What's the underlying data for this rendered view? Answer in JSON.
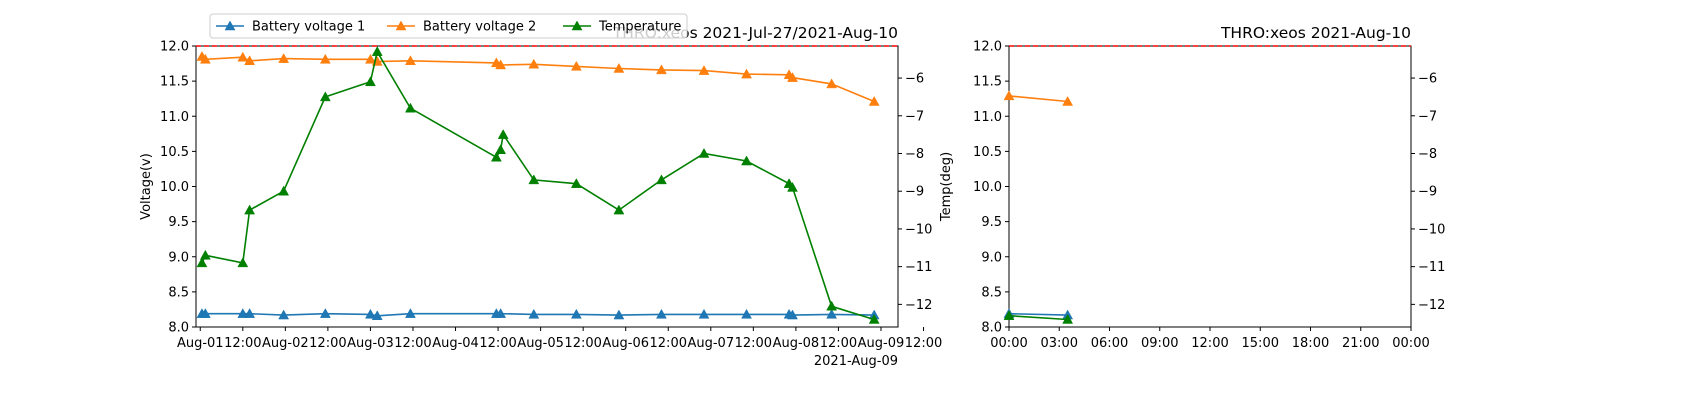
{
  "colors": {
    "battery1": "#1f77b4",
    "battery2": "#ff7f0e",
    "temperature": "#008000",
    "reference": "#ff0000"
  },
  "legend": {
    "location": "top-left",
    "entries": [
      {
        "name": "Battery voltage 1",
        "color": "#1f77b4"
      },
      {
        "name": "Battery voltage 2",
        "color": "#ff7f0e"
      },
      {
        "name": "Temperature",
        "color": "#008000"
      }
    ]
  },
  "chart_data": [
    {
      "type": "line",
      "title": "THRO:xeos 2021-Jul-27/2021-Aug-10",
      "xlabel": "",
      "ylabel": "Voltage(v)",
      "y2label": "Temp(deg)",
      "marker": "triangle-up",
      "grid": false,
      "xlim": [
        -0.05,
        8.2
      ],
      "ylim": [
        8.0,
        12.0
      ],
      "y2lim": [
        -12.6,
        -5.15
      ],
      "xticks": [
        {
          "x": 0,
          "label": "Aug-01"
        },
        {
          "x": 0.5,
          "label": "12:00"
        },
        {
          "x": 1,
          "label": "Aug-02"
        },
        {
          "x": 1.5,
          "label": "12:00"
        },
        {
          "x": 2,
          "label": "Aug-03"
        },
        {
          "x": 2.5,
          "label": "12:00"
        },
        {
          "x": 3,
          "label": "Aug-04"
        },
        {
          "x": 3.5,
          "label": "12:00"
        },
        {
          "x": 4,
          "label": "Aug-05"
        },
        {
          "x": 4.5,
          "label": "12:00"
        },
        {
          "x": 5,
          "label": "Aug-06"
        },
        {
          "x": 5.5,
          "label": "12:00"
        },
        {
          "x": 6,
          "label": "Aug-07"
        },
        {
          "x": 6.5,
          "label": "12:00"
        },
        {
          "x": 7,
          "label": "Aug-08"
        },
        {
          "x": 7.5,
          "label": "12:00"
        },
        {
          "x": 8,
          "label": "Aug-09"
        },
        {
          "x": 8.5,
          "label": "12:00"
        }
      ],
      "x_offset_label": "2021-Aug-09",
      "yticks": [
        8.0,
        8.5,
        9.0,
        9.5,
        10.0,
        10.5,
        11.0,
        11.5,
        12.0
      ],
      "y2ticks": [
        -6,
        -7,
        -8,
        -9,
        -10,
        -11,
        -12
      ],
      "reference_lines": [
        {
          "axis": "y",
          "value": 12.0,
          "style": "dashed",
          "color": "#ff0000"
        }
      ],
      "series": [
        {
          "name": "Battery voltage 1",
          "axis": "left",
          "color": "#1f77b4",
          "x": [
            0.02,
            0.06,
            0.5,
            0.58,
            0.98,
            1.47,
            2.0,
            2.08,
            2.47,
            3.48,
            3.53,
            3.92,
            4.42,
            4.92,
            5.42,
            5.92,
            6.42,
            6.92,
            6.96,
            7.42,
            7.92
          ],
          "values": [
            8.19,
            8.19,
            8.19,
            8.19,
            8.17,
            8.19,
            8.18,
            8.16,
            8.19,
            8.19,
            8.19,
            8.18,
            8.18,
            8.17,
            8.18,
            8.18,
            8.18,
            8.18,
            8.17,
            8.18,
            8.17
          ]
        },
        {
          "name": "Battery voltage 2",
          "axis": "left",
          "color": "#ff7f0e",
          "x": [
            0.02,
            0.06,
            0.5,
            0.58,
            0.98,
            1.47,
            2.0,
            2.08,
            2.47,
            3.48,
            3.53,
            3.92,
            4.42,
            4.92,
            5.42,
            5.92,
            6.42,
            6.92,
            6.96,
            7.42,
            7.92
          ],
          "values": [
            11.85,
            11.81,
            11.84,
            11.79,
            11.82,
            11.81,
            11.81,
            11.78,
            11.79,
            11.76,
            11.73,
            11.74,
            11.71,
            11.68,
            11.66,
            11.65,
            11.6,
            11.59,
            11.55,
            11.46,
            11.21
          ]
        },
        {
          "name": "Temperature",
          "axis": "right",
          "color": "#008000",
          "x": [
            0.02,
            0.06,
            0.5,
            0.58,
            0.98,
            1.47,
            2.0,
            2.08,
            2.47,
            3.48,
            3.53,
            3.56,
            3.92,
            4.42,
            4.92,
            5.42,
            5.92,
            6.42,
            6.92,
            6.96,
            7.42,
            7.92
          ],
          "values": [
            -10.9,
            -10.7,
            -10.9,
            -9.5,
            -9.0,
            -6.5,
            -6.1,
            -5.3,
            -6.8,
            -8.1,
            -7.9,
            -7.5,
            -8.7,
            -8.8,
            -9.5,
            -8.7,
            -8.0,
            -8.2,
            -8.8,
            -8.9,
            -12.05,
            -12.4
          ]
        }
      ]
    },
    {
      "type": "line",
      "title": "THRO:xeos 2021-Aug-10",
      "xlabel": "",
      "ylabel": "",
      "marker": "triangle-up",
      "grid": false,
      "xlim": [
        0,
        24
      ],
      "ylim": [
        8.0,
        12.0
      ],
      "y2lim": [
        -12.6,
        -5.15
      ],
      "xticks": [
        {
          "x": 0,
          "label": "00:00"
        },
        {
          "x": 3,
          "label": "03:00"
        },
        {
          "x": 6,
          "label": "06:00"
        },
        {
          "x": 9,
          "label": "09:00"
        },
        {
          "x": 12,
          "label": "12:00"
        },
        {
          "x": 15,
          "label": "15:00"
        },
        {
          "x": 18,
          "label": "18:00"
        },
        {
          "x": 21,
          "label": "21:00"
        },
        {
          "x": 24,
          "label": "00:00"
        }
      ],
      "yticks": [
        8.0,
        8.5,
        9.0,
        9.5,
        10.0,
        10.5,
        11.0,
        11.5,
        12.0
      ],
      "y2ticks": [
        -6,
        -7,
        -8,
        -9,
        -10,
        -11,
        -12
      ],
      "reference_lines": [
        {
          "axis": "y",
          "value": 12.0,
          "style": "dashed",
          "color": "#ff0000"
        }
      ],
      "series": [
        {
          "name": "Battery voltage 1",
          "axis": "left",
          "color": "#1f77b4",
          "x": [
            0,
            3.5
          ],
          "values": [
            8.19,
            8.17
          ]
        },
        {
          "name": "Battery voltage 2",
          "axis": "left",
          "color": "#ff7f0e",
          "x": [
            0,
            3.5
          ],
          "values": [
            11.29,
            11.21
          ]
        },
        {
          "name": "Temperature",
          "axis": "right",
          "color": "#008000",
          "x": [
            0,
            3.5
          ],
          "values": [
            -12.3,
            -12.4
          ]
        }
      ]
    }
  ]
}
